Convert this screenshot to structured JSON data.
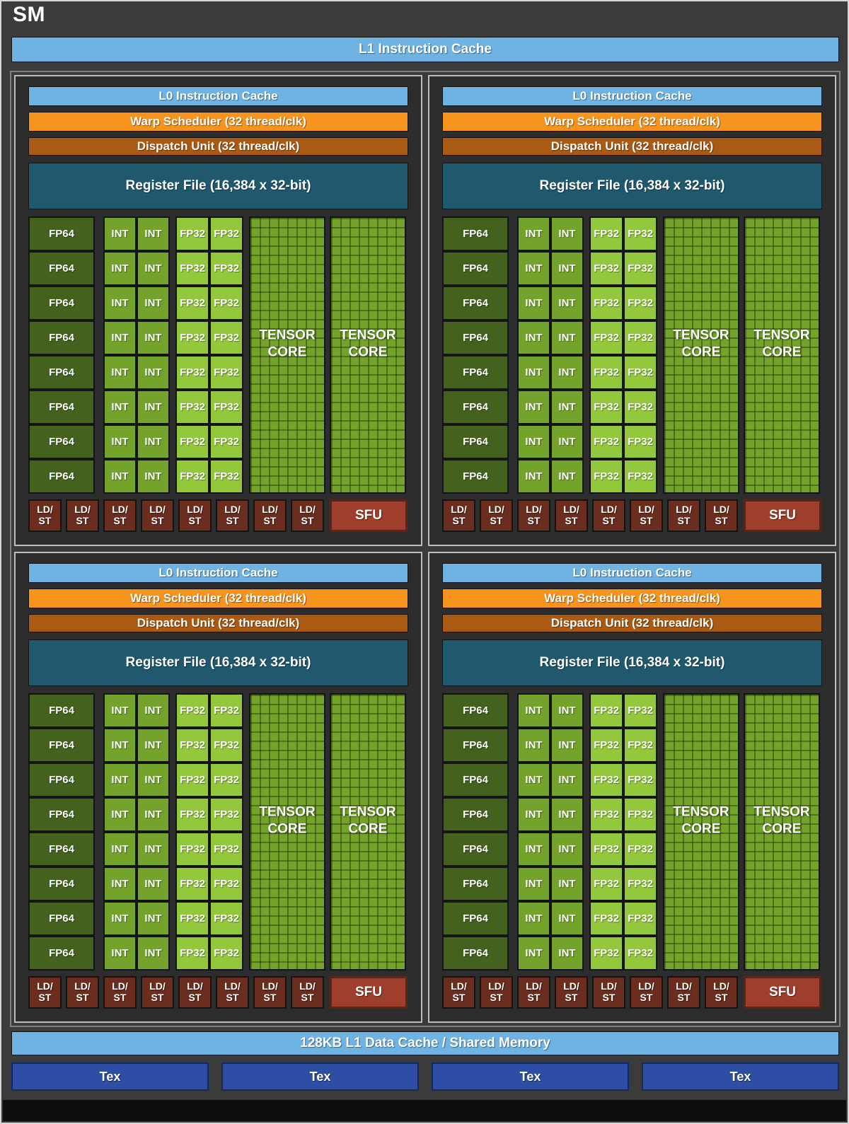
{
  "title": "SM",
  "l1_instruction_cache": "L1 Instruction Cache",
  "quadrant_count": 4,
  "quadrant": {
    "l0_instruction_cache": "L0 Instruction Cache",
    "warp_scheduler": "Warp Scheduler (32 thread/clk)",
    "dispatch_unit": "Dispatch Unit (32 thread/clk)",
    "register_file": "Register File (16,384 x 32-bit)",
    "core_rows": 8,
    "ldst_count": 8,
    "labels": {
      "fp64": "FP64",
      "int": "INT",
      "fp32": "FP32",
      "tensor_line1": "TENSOR",
      "tensor_line2": "CORE",
      "ldst_line1": "LD/",
      "ldst_line2": "ST",
      "sfu": "SFU"
    }
  },
  "footer": {
    "l1_data_cache": "128KB L1 Data Cache / Shared Memory",
    "tex_units": [
      "Tex",
      "Tex",
      "Tex",
      "Tex"
    ]
  },
  "colors": {
    "background": "#3b3b3b",
    "panel_bg": "#2d2d2d",
    "light_blue": "#6fb3e3",
    "orange": "#f7941e",
    "dark_orange": "#ab5a13",
    "teal": "#20596e",
    "fp64_green": "#44621e",
    "int_green": "#73a32a",
    "fp32_green": "#94c83c",
    "tensor_green": "#73a32a",
    "ldst_maroon": "#6b2d1d",
    "sfu_red": "#9e3e2c",
    "sfu_border": "#5a2416",
    "tex_blue": "#2e4ea6",
    "tex_border": "#14295c",
    "cell_border": "#141414"
  }
}
